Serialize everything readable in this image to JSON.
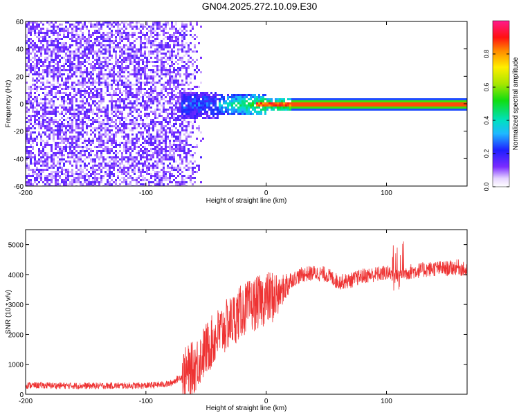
{
  "title": "GN04.2025.272.10.09.E30",
  "chart_data": [
    {
      "type": "heatmap",
      "xlabel": "Height of straight line (km)",
      "ylabel": "Frequency (Hz)",
      "xlim": [
        -200,
        167
      ],
      "ylim": [
        -60,
        60
      ],
      "xticks": [
        -200,
        -100,
        0,
        100
      ],
      "yticks": [
        -60,
        -40,
        -20,
        0,
        20,
        40,
        60
      ],
      "colorbar": {
        "label": "Normalized spectral amplitude",
        "range": [
          0,
          1
        ],
        "ticks": [
          0.0,
          0.2,
          0.4,
          0.6,
          0.8
        ]
      },
      "features": {
        "noise_region_x": [
          -200,
          -52
        ],
        "carrier_line_frequency_hz": 0,
        "carrier_start_x": 20
      }
    },
    {
      "type": "line",
      "xlabel": "Height of straight line (km)",
      "ylabel": "SNR (10 * v/v)",
      "xlim": [
        -200,
        167
      ],
      "ylim": [
        0,
        5500
      ],
      "xticks": [
        -200,
        -100,
        0,
        100
      ],
      "yticks": [
        0,
        1000,
        2000,
        3000,
        4000,
        5000
      ],
      "line_color": "#ee3333",
      "x": [
        -200,
        -150,
        -100,
        -80,
        -70,
        -60,
        -50,
        -40,
        -30,
        -20,
        -10,
        0,
        10,
        20,
        30,
        40,
        50,
        60,
        70,
        80,
        90,
        100,
        110,
        120,
        130,
        140,
        150,
        160,
        167
      ],
      "values": [
        300,
        280,
        290,
        350,
        600,
        900,
        1500,
        2000,
        2400,
        2800,
        3000,
        3200,
        3300,
        3800,
        4000,
        4050,
        4000,
        3750,
        3800,
        3950,
        4000,
        4050,
        4000,
        4100,
        4150,
        4200,
        4200,
        4250,
        4100
      ]
    }
  ]
}
